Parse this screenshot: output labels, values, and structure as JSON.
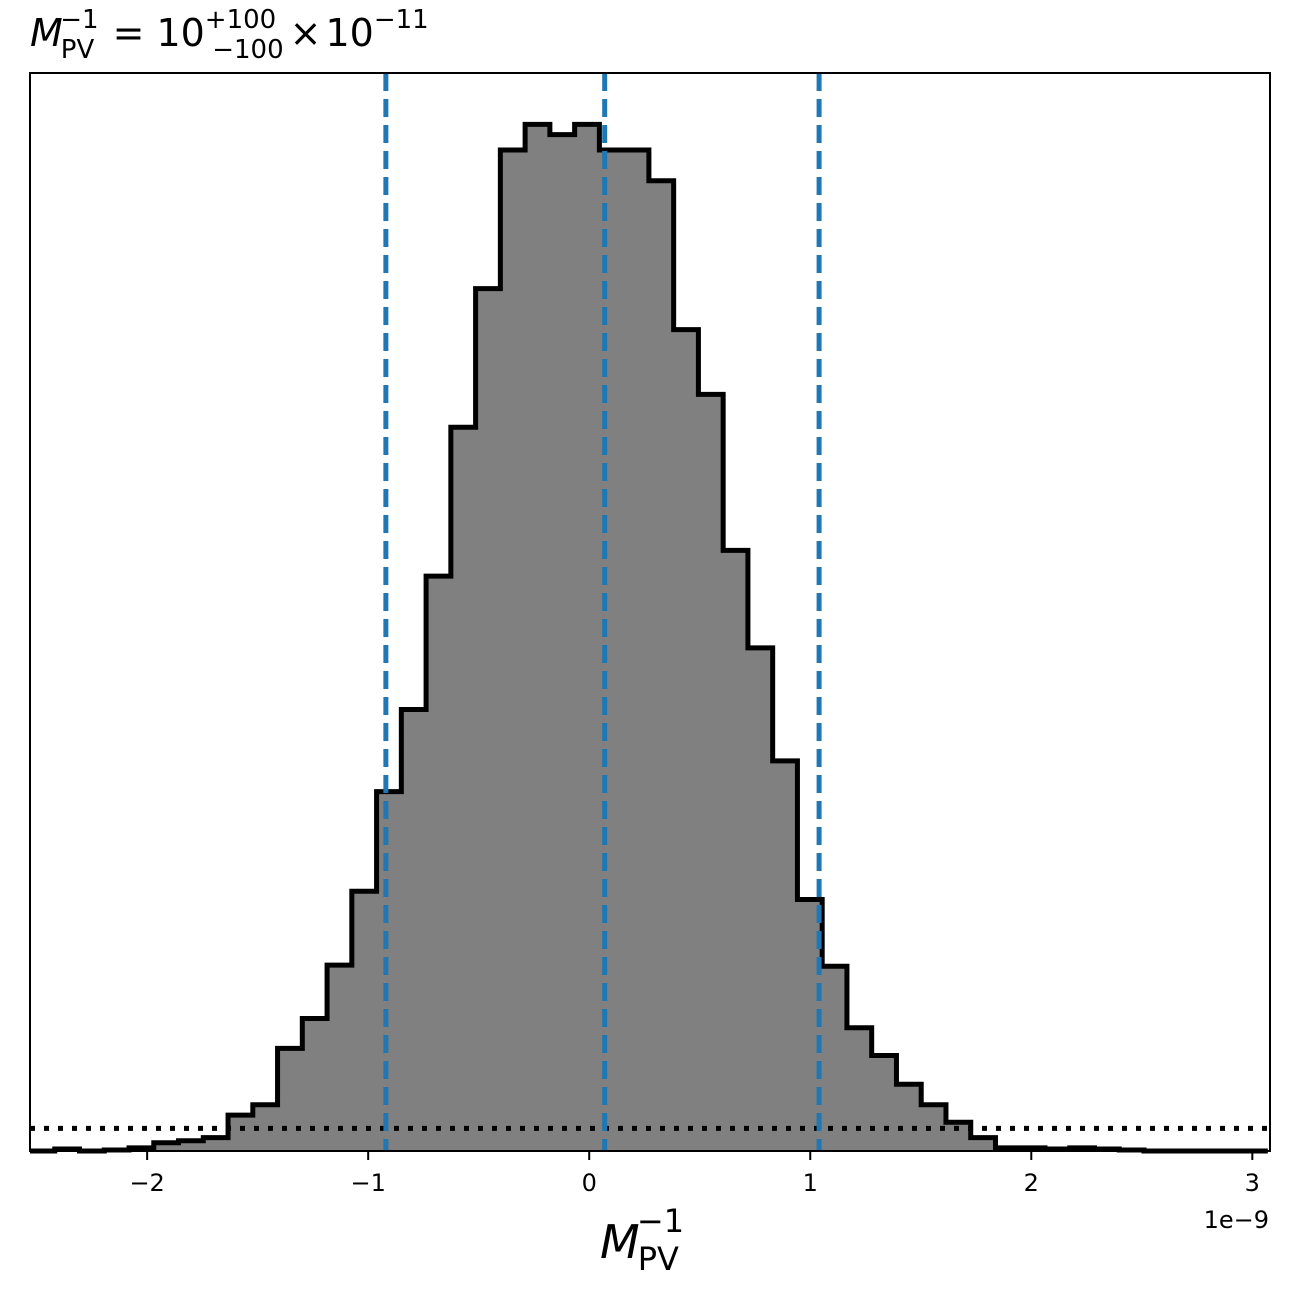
{
  "chart_data": {
    "type": "histogram",
    "title": {
      "base": "M",
      "sub": "PV",
      "sup": "−1",
      "equals": "=",
      "mantissa": "10",
      "upper": "+100",
      "lower": "−100",
      "times": "×",
      "exp_base": "10",
      "exp": "−11"
    },
    "xlabel": {
      "base": "M",
      "sub": "PV",
      "sup": "−1"
    },
    "x_offset_label": "1e−9",
    "xlim": [
      -2.53,
      3.08
    ],
    "ylim": [
      0,
      1.05
    ],
    "x_ticks": [
      -2,
      -1,
      0,
      1,
      2,
      3
    ],
    "x_tick_labels": [
      "−2",
      "−1",
      "0",
      "1",
      "2",
      "3"
    ],
    "bin_edges": [
      -2.53,
      -2.418,
      -2.306,
      -2.194,
      -2.082,
      -1.97,
      -1.858,
      -1.746,
      -1.634,
      -1.522,
      -1.41,
      -1.298,
      -1.186,
      -1.074,
      -0.962,
      -0.85,
      -0.738,
      -0.626,
      -0.514,
      -0.402,
      -0.29,
      -0.178,
      -0.066,
      0.046,
      0.158,
      0.27,
      0.382,
      0.494,
      0.606,
      0.718,
      0.83,
      0.942,
      1.054,
      1.166,
      1.278,
      1.39,
      1.502,
      1.614,
      1.726,
      1.838,
      1.95,
      2.062,
      2.174,
      2.286,
      2.398,
      2.51,
      2.622,
      2.734,
      2.846,
      2.958,
      3.07
    ],
    "counts": [
      0.0,
      0.002,
      0.0,
      0.001,
      0.003,
      0.008,
      0.01,
      0.013,
      0.035,
      0.045,
      0.1,
      0.129,
      0.181,
      0.253,
      0.35,
      0.43,
      0.56,
      0.705,
      0.84,
      0.975,
      1.0,
      0.99,
      1.0,
      0.975,
      0.975,
      0.945,
      0.8,
      0.737,
      0.585,
      0.49,
      0.38,
      0.245,
      0.18,
      0.12,
      0.093,
      0.065,
      0.045,
      0.028,
      0.013,
      0.003,
      0.003,
      0.002,
      0.003,
      0.002,
      0.001,
      0.0,
      0.0,
      0.0,
      0.0,
      0.0
    ],
    "fill_color": "#808080",
    "edge_color": "#000000",
    "quantile_lines": [
      -0.92,
      0.07,
      1.04
    ],
    "quantile_color": "#1f77b4",
    "baseline_level": 0.022,
    "baseline_color": "#000000"
  }
}
